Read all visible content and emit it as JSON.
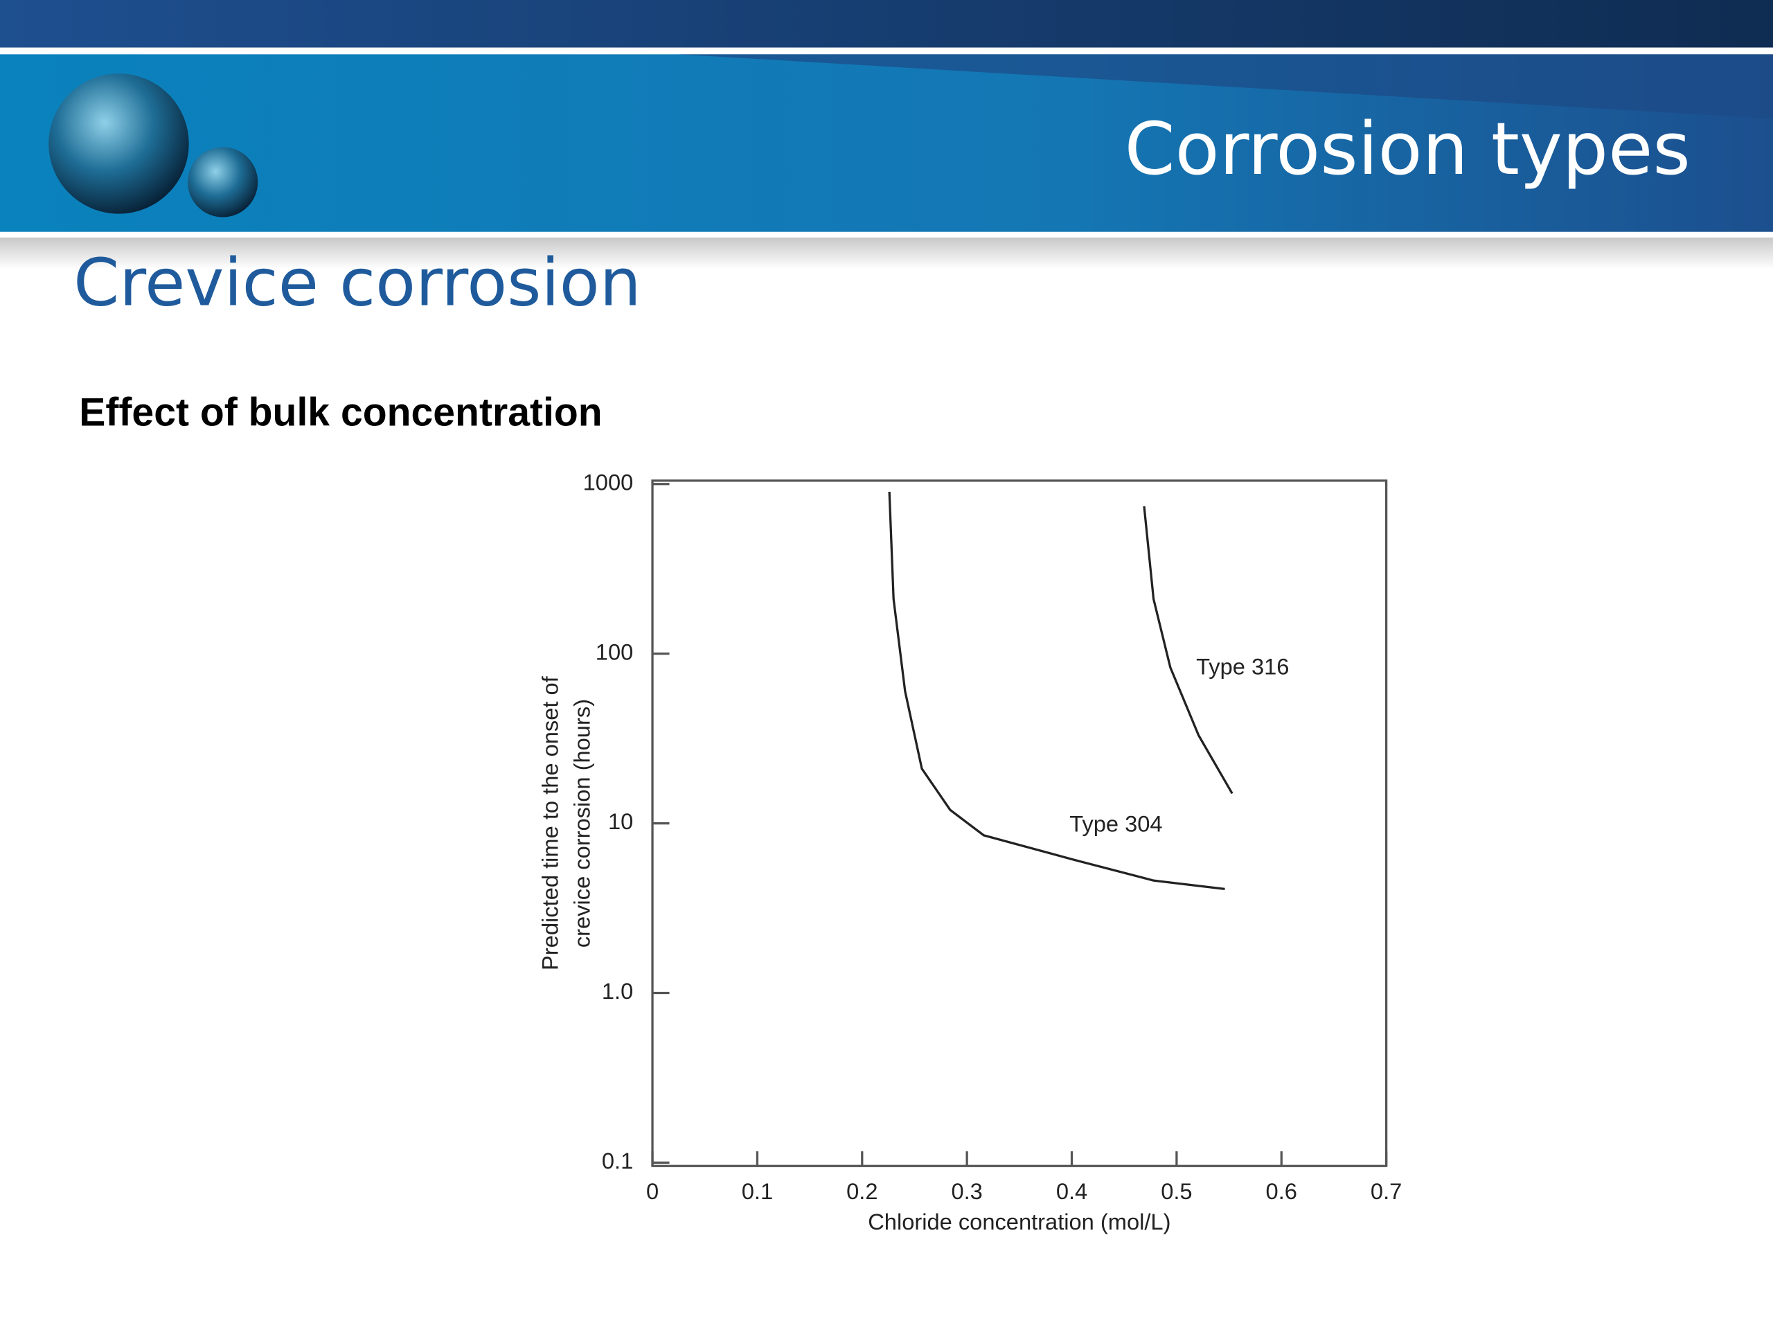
{
  "header": {
    "title": "Corrosion types"
  },
  "slide": {
    "title": "Crevice corrosion",
    "subtitle": "Effect of bulk concentration"
  },
  "chart_data": {
    "type": "line",
    "xlabel": "Chloride concentration (mol/L)",
    "ylabel": [
      "Predicted time to the onset of",
      "crevice corrosion (hours)"
    ],
    "xlim": [
      0,
      0.7
    ],
    "xticks": [
      0,
      0.1,
      0.2,
      0.3,
      0.4,
      0.5,
      0.6,
      0.7
    ],
    "ylim": [
      0.1,
      1000
    ],
    "ylog": true,
    "yticks": [
      0.1,
      {
        "value": 1,
        "label": "1.0"
      },
      10,
      100,
      1000
    ],
    "series": [
      {
        "name": "Type 304",
        "color": "#222222",
        "x": [
          0.226,
          0.23,
          0.241,
          0.257,
          0.284,
          0.316,
          0.402,
          0.478,
          0.546
        ],
        "values": [
          900,
          210,
          60,
          21,
          12,
          8.5,
          6.1,
          4.6,
          4.1
        ]
      },
      {
        "name": "Type 316",
        "color": "#222222",
        "x": [
          0.469,
          0.478,
          0.494,
          0.521,
          0.553
        ],
        "values": [
          740,
          210,
          83,
          33,
          15
        ]
      }
    ]
  }
}
